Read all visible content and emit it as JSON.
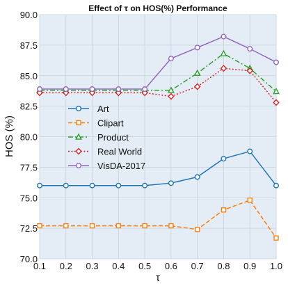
{
  "chart_data": {
    "type": "line",
    "title": "Effect of τ on HOS(%)  Performance",
    "xlabel": "τ",
    "ylabel": "HOS (%)",
    "x": [
      0.1,
      0.2,
      0.3,
      0.4,
      0.5,
      0.6,
      0.7,
      0.8,
      0.9,
      1.0
    ],
    "x_tick_labels": [
      "0.1",
      "0.2",
      "0.3",
      "0.4",
      "0.5",
      "0.6",
      "0.7",
      "0.8",
      "0.9",
      "1.0"
    ],
    "xlim": [
      0.1,
      1.0
    ],
    "ylim": [
      70.0,
      90.0
    ],
    "y_ticks": [
      70.0,
      72.5,
      75.0,
      77.5,
      80.0,
      82.5,
      85.0,
      87.5,
      90.0
    ],
    "y_tick_labels": [
      "70.0",
      "72.5",
      "75.0",
      "77.5",
      "80.0",
      "82.5",
      "85.0",
      "87.5",
      "90.0"
    ],
    "grid": true,
    "legend_position": "center-left",
    "background_color": "#e4edf6",
    "grid_color": "#c4d1de",
    "series": [
      {
        "name": "Art",
        "color": "#1f77b4",
        "marker": "circle",
        "line_style": "solid",
        "values": [
          76.0,
          76.0,
          76.0,
          76.0,
          76.0,
          76.2,
          76.7,
          78.2,
          78.8,
          76.0
        ]
      },
      {
        "name": "Clipart",
        "color": "#ff7f0e",
        "marker": "square",
        "line_style": "dashed",
        "values": [
          72.7,
          72.7,
          72.7,
          72.7,
          72.7,
          72.7,
          72.4,
          74.0,
          74.8,
          71.7
        ]
      },
      {
        "name": "Product",
        "color": "#2ca02c",
        "marker": "triangle",
        "line_style": "dashdot",
        "values": [
          83.8,
          83.8,
          83.8,
          83.8,
          83.8,
          83.8,
          85.2,
          86.8,
          85.6,
          83.7
        ]
      },
      {
        "name": "Real World",
        "color": "#d62728",
        "marker": "diamond",
        "line_style": "dotted",
        "values": [
          83.6,
          83.6,
          83.6,
          83.6,
          83.6,
          83.3,
          84.1,
          85.6,
          85.4,
          82.8
        ]
      },
      {
        "name": "VisDA-2017",
        "color": "#9467bd",
        "marker": "circle",
        "line_style": "solid",
        "values": [
          83.9,
          83.9,
          83.9,
          83.9,
          83.9,
          86.4,
          87.3,
          88.2,
          87.2,
          86.1
        ]
      }
    ]
  }
}
